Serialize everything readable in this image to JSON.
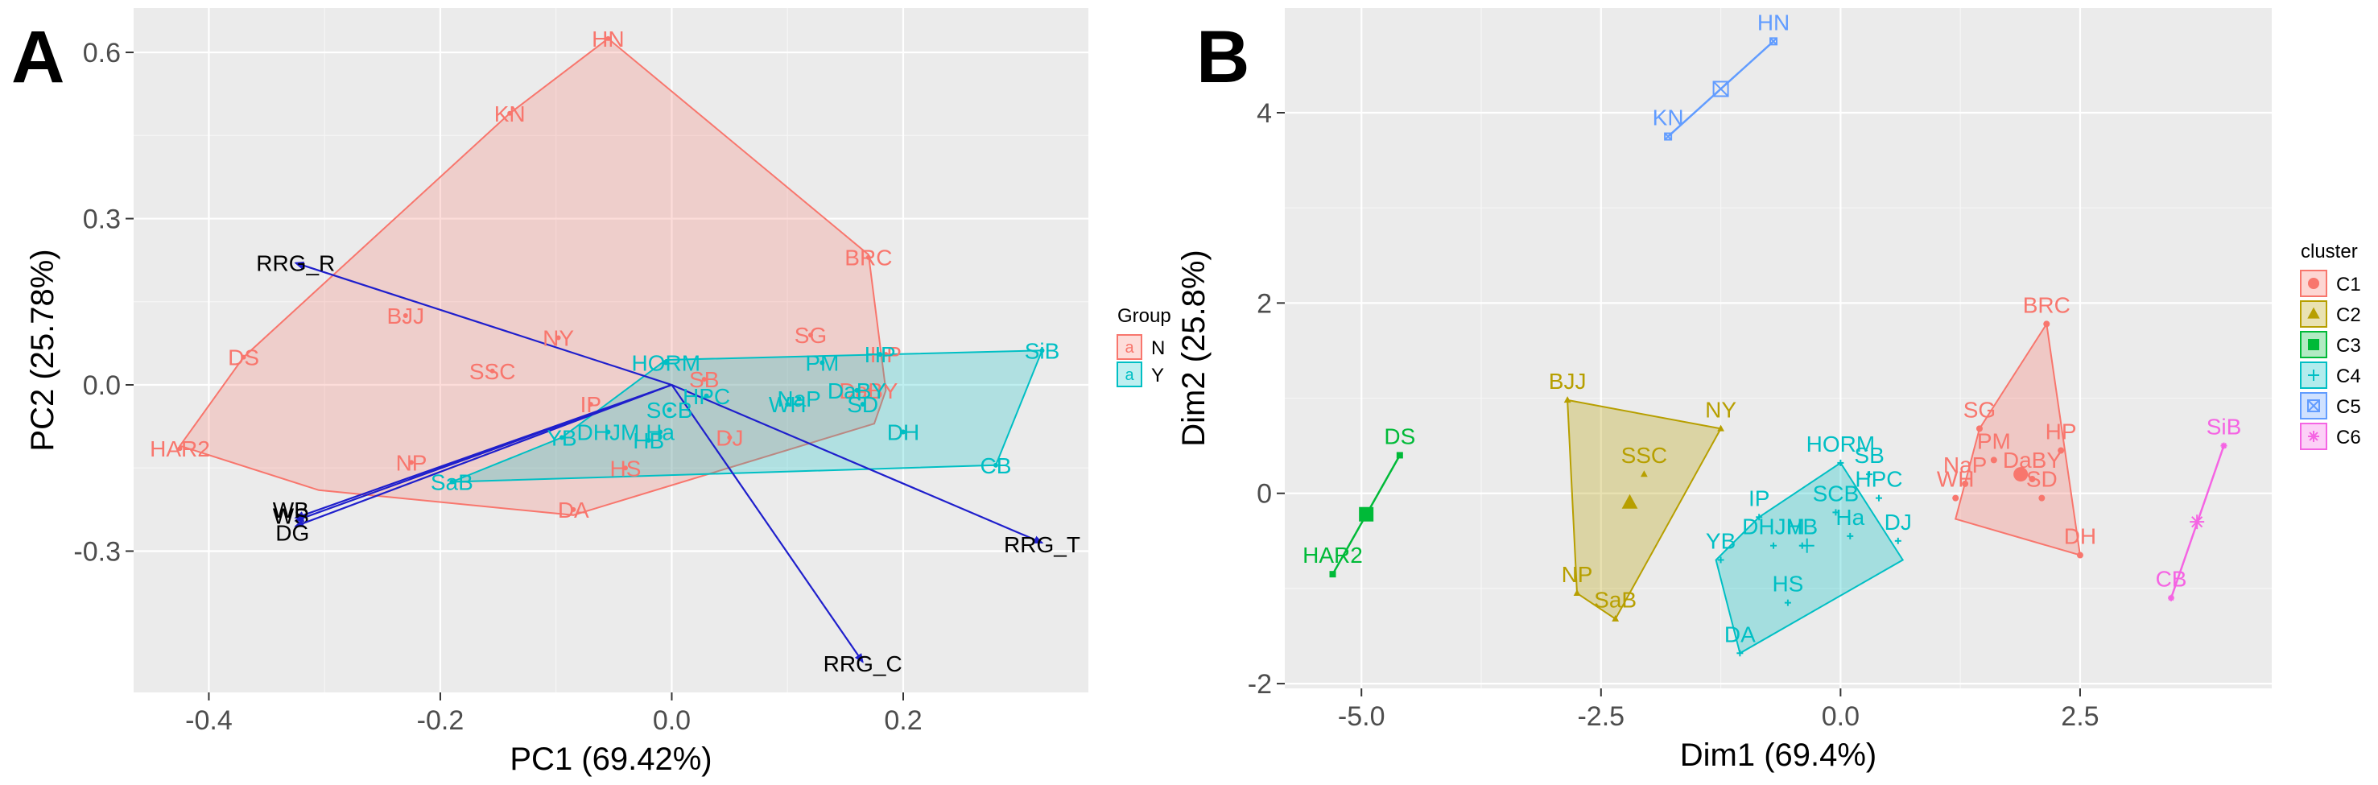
{
  "colors": {
    "N": "#F8766D",
    "Y": "#00BFC4",
    "C1": "#F8766D",
    "C2": "#B79F00",
    "C3": "#00BA38",
    "C4": "#00BFC4",
    "C5": "#619CFF",
    "C6": "#F564E3",
    "arrow": "#1f1fcc"
  },
  "chart_data": [
    {
      "panel": "A",
      "type": "scatter",
      "xlabel": "PC1 (69.42%)",
      "ylabel": "PC2 (25.78%)",
      "xlim": [
        -0.465,
        0.36
      ],
      "ylim": [
        -0.555,
        0.68
      ],
      "xticks": [
        -0.4,
        -0.2,
        0.0,
        0.2
      ],
      "xtick_labels": [
        "-0.4",
        "-0.2",
        "0.0",
        "0.2"
      ],
      "yticks": [
        -0.3,
        0.0,
        0.3,
        0.6
      ],
      "ytick_labels": [
        "-0.3",
        "0.0",
        "0.3",
        "0.6"
      ],
      "grid": true,
      "legend": {
        "title": "Group",
        "position": "right",
        "entries": [
          "N",
          "Y"
        ]
      },
      "groups": [
        {
          "name": "N",
          "points": [
            {
              "label": "HN",
              "x": -0.055,
              "y": 0.625
            },
            {
              "label": "KN",
              "x": -0.14,
              "y": 0.49
            },
            {
              "label": "BRC",
              "x": 0.17,
              "y": 0.23
            },
            {
              "label": "BJJ",
              "x": -0.23,
              "y": 0.125
            },
            {
              "label": "NY",
              "x": -0.098,
              "y": 0.085
            },
            {
              "label": "DS",
              "x": -0.37,
              "y": 0.05
            },
            {
              "label": "SSC",
              "x": -0.155,
              "y": 0.025
            },
            {
              "label": "SG",
              "x": 0.12,
              "y": 0.09
            },
            {
              "label": "SB",
              "x": 0.028,
              "y": 0.01
            },
            {
              "label": "HP",
              "x": 0.185,
              "y": 0.055
            },
            {
              "label": "HAR2",
              "x": -0.425,
              "y": -0.115
            },
            {
              "label": "NP",
              "x": -0.225,
              "y": -0.14
            },
            {
              "label": "DA",
              "x": -0.085,
              "y": -0.225
            },
            {
              "label": "IP",
              "x": -0.07,
              "y": -0.035
            },
            {
              "label": "HS",
              "x": -0.04,
              "y": -0.15
            },
            {
              "label": "DJ",
              "x": 0.05,
              "y": -0.095
            },
            {
              "label": "DaBY",
              "x": 0.17,
              "y": -0.01
            },
            {
              "label": "DH",
              "x": 0.2,
              "y": -0.085
            }
          ]
        },
        {
          "name": "Y",
          "points": [
            {
              "label": "SiB",
              "x": 0.32,
              "y": 0.062
            },
            {
              "label": "CB",
              "x": 0.28,
              "y": -0.145
            },
            {
              "label": "HORM",
              "x": -0.005,
              "y": 0.04
            },
            {
              "label": "PM",
              "x": 0.13,
              "y": 0.04
            },
            {
              "label": "HP",
              "x": 0.18,
              "y": 0.055
            },
            {
              "label": "HPC",
              "x": 0.03,
              "y": -0.02
            },
            {
              "label": "NaP",
              "x": 0.11,
              "y": -0.025
            },
            {
              "label": "WH",
              "x": 0.1,
              "y": -0.035
            },
            {
              "label": "DaBY",
              "x": 0.16,
              "y": -0.01
            },
            {
              "label": "SD",
              "x": 0.165,
              "y": -0.035
            },
            {
              "label": "DH",
              "x": 0.2,
              "y": -0.085
            },
            {
              "label": "SCB",
              "x": -0.002,
              "y": -0.045
            },
            {
              "label": "YB",
              "x": -0.095,
              "y": -0.095
            },
            {
              "label": "DHJM",
              "x": -0.055,
              "y": -0.085
            },
            {
              "label": "Ha",
              "x": -0.01,
              "y": -0.085
            },
            {
              "label": "HB",
              "x": -0.02,
              "y": -0.1
            },
            {
              "label": "SaB",
              "x": -0.19,
              "y": -0.175
            }
          ]
        }
      ],
      "hulls": {
        "N": [
          [
            -0.055,
            0.625
          ],
          [
            0.17,
            0.235
          ],
          [
            0.185,
            -0.01
          ],
          [
            0.175,
            -0.07
          ],
          [
            -0.085,
            -0.235
          ],
          [
            -0.305,
            -0.19
          ],
          [
            -0.425,
            -0.11
          ],
          [
            -0.37,
            0.05
          ],
          [
            -0.14,
            0.49
          ]
        ],
        "Y": [
          [
            0.32,
            0.062
          ],
          [
            0.28,
            -0.145
          ],
          [
            -0.19,
            -0.175
          ],
          [
            -0.095,
            -0.095
          ],
          [
            -0.005,
            0.045
          ]
        ]
      },
      "vectors": [
        {
          "label": "RRG_R",
          "x": -0.325,
          "y": 0.22
        },
        {
          "label": "RRG_T",
          "x": 0.32,
          "y": -0.285
        },
        {
          "label": "RRG_C",
          "x": 0.165,
          "y": -0.5
        },
        {
          "label": "WB",
          "x": -0.325,
          "y": -0.24
        },
        {
          "label": "WS",
          "x": -0.325,
          "y": -0.245
        },
        {
          "label": "DG",
          "x": -0.325,
          "y": -0.255
        }
      ]
    },
    {
      "panel": "B",
      "type": "scatter",
      "xlabel": "Dim1 (69.4%)",
      "ylabel": "Dim2 (25.8%)",
      "xlim": [
        -5.8,
        4.5
      ],
      "ylim": [
        -2.05,
        5.1
      ],
      "xticks": [
        -5.0,
        -2.5,
        0.0,
        2.5
      ],
      "xtick_labels": [
        "-5.0",
        "-2.5",
        "0.0",
        "2.5"
      ],
      "yticks": [
        -2,
        0,
        2,
        4
      ],
      "ytick_labels": [
        "-2",
        "0",
        "2",
        "4"
      ],
      "grid": true,
      "legend": {
        "title": "cluster",
        "position": "right",
        "entries": [
          "C1",
          "C2",
          "C3",
          "C4",
          "C5",
          "C6"
        ]
      },
      "clusters": [
        {
          "name": "C1",
          "points": [
            {
              "label": "BRC",
              "x": 2.15,
              "y": 1.78
            },
            {
              "label": "SG",
              "x": 1.45,
              "y": 0.68
            },
            {
              "label": "HP",
              "x": 2.3,
              "y": 0.45
            },
            {
              "label": "PM",
              "x": 1.6,
              "y": 0.35
            },
            {
              "label": "DaBY",
              "x": 2.0,
              "y": 0.15
            },
            {
              "label": "NaP",
              "x": 1.3,
              "y": 0.1
            },
            {
              "label": "WH",
              "x": 1.2,
              "y": -0.05
            },
            {
              "label": "SD",
              "x": 2.1,
              "y": -0.05
            },
            {
              "label": "DH",
              "x": 2.5,
              "y": -0.65
            }
          ],
          "center": [
            1.88,
            0.2
          ],
          "hull": [
            [
              2.15,
              1.78
            ],
            [
              2.5,
              -0.65
            ],
            [
              1.2,
              -0.27
            ],
            [
              1.45,
              0.68
            ]
          ]
        },
        {
          "name": "C2",
          "points": [
            {
              "label": "BJJ",
              "x": -2.85,
              "y": 0.98
            },
            {
              "label": "NY",
              "x": -1.25,
              "y": 0.68
            },
            {
              "label": "SSC",
              "x": -2.05,
              "y": 0.2
            },
            {
              "label": "NP",
              "x": -2.75,
              "y": -1.05
            },
            {
              "label": "SaB",
              "x": -2.35,
              "y": -1.32
            }
          ],
          "center": [
            -2.2,
            -0.1
          ],
          "hull": [
            [
              -2.85,
              0.98
            ],
            [
              -1.25,
              0.68
            ],
            [
              -2.35,
              -1.32
            ],
            [
              -2.75,
              -1.05
            ]
          ]
        },
        {
          "name": "C3",
          "points": [
            {
              "label": "DS",
              "x": -4.6,
              "y": 0.4
            },
            {
              "label": "HAR2",
              "x": -5.3,
              "y": -0.85
            }
          ],
          "center": [
            -4.95,
            -0.22
          ]
        },
        {
          "name": "C4",
          "points": [
            {
              "label": "HORM",
              "x": 0.0,
              "y": 0.32
            },
            {
              "label": "SB",
              "x": 0.3,
              "y": 0.2
            },
            {
              "label": "HPC",
              "x": 0.4,
              "y": -0.05
            },
            {
              "label": "IP",
              "x": -0.85,
              "y": -0.25
            },
            {
              "label": "SCB",
              "x": -0.05,
              "y": -0.2
            },
            {
              "label": "YB",
              "x": -1.25,
              "y": -0.7
            },
            {
              "label": "DHJM",
              "x": -0.7,
              "y": -0.55
            },
            {
              "label": "Ha",
              "x": 0.1,
              "y": -0.45
            },
            {
              "label": "HB",
              "x": -0.4,
              "y": -0.55
            },
            {
              "label": "DJ",
              "x": 0.6,
              "y": -0.5
            },
            {
              "label": "HS",
              "x": -0.55,
              "y": -1.15
            },
            {
              "label": "DA",
              "x": -1.05,
              "y": -1.68
            }
          ],
          "center": [
            -0.35,
            -0.55
          ],
          "hull": [
            [
              0.0,
              0.32
            ],
            [
              0.65,
              -0.7
            ],
            [
              -1.05,
              -1.68
            ],
            [
              -1.3,
              -0.7
            ],
            [
              -0.85,
              -0.25
            ]
          ]
        },
        {
          "name": "C5",
          "points": [
            {
              "label": "HN",
              "x": -0.7,
              "y": 4.75
            },
            {
              "label": "KN",
              "x": -1.8,
              "y": 3.75
            }
          ],
          "center": [
            -1.25,
            4.25
          ]
        },
        {
          "name": "C6",
          "points": [
            {
              "label": "SiB",
              "x": 4.0,
              "y": 0.5
            },
            {
              "label": "CB",
              "x": 3.45,
              "y": -1.1
            }
          ],
          "center": [
            3.72,
            -0.3
          ]
        }
      ]
    }
  ],
  "panel_letters": [
    "A",
    "B"
  ]
}
